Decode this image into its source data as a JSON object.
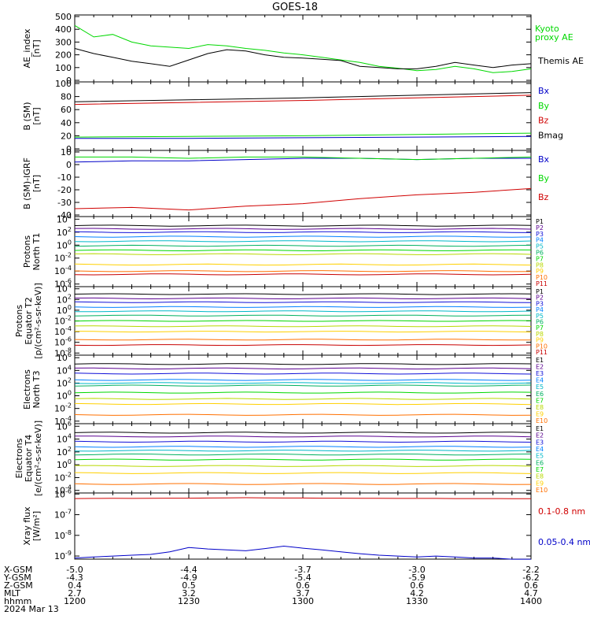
{
  "title": "GOES-18",
  "footer": {
    "rows": [
      {
        "label": "X-GSM",
        "values": [
          "-5.0",
          "-4.4",
          "-3.7",
          "-3.0",
          "-2.2"
        ]
      },
      {
        "label": "Y-GSM",
        "values": [
          "-4.3",
          "-4.9",
          "-5.4",
          "-5.9",
          "-6.2"
        ]
      },
      {
        "label": "Z-GSM",
        "values": [
          "0.4",
          "0.5",
          "0.6",
          "0.6",
          "0.6"
        ]
      },
      {
        "label": "MLT",
        "values": [
          "2.7",
          "3.2",
          "3.7",
          "4.2",
          "4.7"
        ]
      },
      {
        "label": "hhmm",
        "values": [
          "1200",
          "1230",
          "1300",
          "1330",
          "1400"
        ]
      }
    ],
    "date": "2024 Mar 13"
  },
  "colors": {
    "black": "#000000",
    "green": "#00d800",
    "blue": "#0000c8",
    "red": "#d00000",
    "p": [
      "#000000",
      "#5a0090",
      "#1010d8",
      "#0080ff",
      "#00b8c8",
      "#00b060",
      "#00d800",
      "#b8d800",
      "#ffd000",
      "#ff7000",
      "#c80000"
    ]
  },
  "chart_data": [
    {
      "type": "line",
      "ylabel": [
        "AE_index",
        "[nT]"
      ],
      "ylim": [
        0,
        500
      ],
      "yticks": [
        "0",
        "100",
        "200",
        "300",
        "400",
        "500"
      ],
      "x": [
        1200,
        1205,
        1210,
        1215,
        1220,
        1225,
        1230,
        1235,
        1240,
        1245,
        1250,
        1255,
        1300,
        1305,
        1310,
        1315,
        1320,
        1325,
        1330,
        1335,
        1340,
        1345,
        1350,
        1355,
        1400
      ],
      "series": [
        {
          "name": "Kyoto proxy AE",
          "color": "green",
          "values": [
            430,
            340,
            360,
            300,
            270,
            260,
            250,
            280,
            270,
            250,
            235,
            215,
            200,
            180,
            160,
            140,
            110,
            95,
            75,
            85,
            110,
            90,
            60,
            70,
            90
          ]
        },
        {
          "name": "Themis AE",
          "color": "black",
          "values": [
            250,
            210,
            180,
            150,
            130,
            110,
            160,
            210,
            240,
            230,
            200,
            180,
            175,
            165,
            155,
            110,
            100,
            90,
            90,
            110,
            140,
            120,
            100,
            120,
            130
          ]
        }
      ]
    },
    {
      "type": "line",
      "ylabel": [
        "B (SM)",
        "[nT]"
      ],
      "ylim": [
        0,
        100
      ],
      "yticks": [
        "0",
        "20",
        "40",
        "60",
        "80",
        "100"
      ],
      "x": [
        1200,
        1230,
        1300,
        1330,
        1400
      ],
      "series": [
        {
          "name": "Bx",
          "color": "blue",
          "values": [
            16,
            16,
            17,
            18,
            19
          ]
        },
        {
          "name": "By",
          "color": "green",
          "values": [
            18,
            19,
            20,
            22,
            24
          ]
        },
        {
          "name": "Bz",
          "color": "red",
          "values": [
            68,
            71,
            74,
            78,
            82
          ]
        },
        {
          "name": "Bmag",
          "color": "black",
          "values": [
            72,
            75,
            78,
            82,
            86
          ]
        }
      ]
    },
    {
      "type": "line",
      "ylabel": [
        "B (SM)-IGRF",
        "[nT]"
      ],
      "ylim": [
        -40,
        10
      ],
      "yticks": [
        "-40",
        "-30",
        "-20",
        "-10",
        "0",
        "10"
      ],
      "x": [
        1200,
        1215,
        1230,
        1245,
        1300,
        1315,
        1330,
        1345,
        1400
      ],
      "series": [
        {
          "name": "Bx",
          "color": "blue",
          "values": [
            2,
            3,
            3,
            4,
            5,
            5,
            4,
            5,
            5
          ]
        },
        {
          "name": "By",
          "color": "green",
          "values": [
            6,
            6,
            5,
            6,
            6,
            5,
            4,
            5,
            6
          ]
        },
        {
          "name": "Bz",
          "color": "red",
          "values": [
            -35,
            -34,
            -36,
            -33,
            -31,
            -27,
            -24,
            -22,
            -19
          ]
        }
      ]
    },
    {
      "type": "line",
      "ylabel": [
        "Protons",
        "North T1"
      ],
      "scale": "log",
      "yticks": [
        "10^-6",
        "10^-4",
        "10^-2",
        "10^0",
        "10^2",
        "10^4"
      ],
      "labels": [
        "P1",
        "P2",
        "P3",
        "P4",
        "P5",
        "P6",
        "P7",
        "P8",
        "P9",
        "P10",
        "P11"
      ],
      "log_levels": [
        3.0,
        2.5,
        2.0,
        1.3,
        0.6,
        -0.1,
        -0.8,
        -1.4,
        -3.0,
        -4.0,
        -4.5
      ]
    },
    {
      "type": "line",
      "ylabel": [
        "Protons",
        "Equator T2",
        "[p/(cm²-s-sr-keV)]"
      ],
      "scale": "log",
      "yticks": [
        "10^-8",
        "10^-6",
        "10^-4",
        "10^-2",
        "10^0",
        "10^2",
        "10^4"
      ],
      "labels": [
        "P1",
        "P2",
        "P3",
        "P4",
        "P5",
        "P6",
        "P7",
        "P8",
        "P9",
        "P10",
        "P11"
      ],
      "log_levels": [
        3.0,
        2.2,
        1.5,
        0.6,
        -0.2,
        -1.0,
        -2.0,
        -3.0,
        -4.0,
        -5.5,
        -6.5
      ]
    },
    {
      "type": "line",
      "ylabel": [
        "Electrons",
        "North T3"
      ],
      "scale": "log",
      "yticks": [
        "10^-4",
        "10^-2",
        "10^0",
        "10^2",
        "10^4",
        "10^6"
      ],
      "labels": [
        "E1",
        "E2",
        "E3",
        "E4",
        "E5",
        "E6",
        "E7",
        "E8",
        "E9",
        "E10"
      ],
      "log_levels": [
        5.0,
        4.3,
        3.5,
        2.5,
        2.0,
        1.6,
        0.5,
        -0.5,
        -1.3,
        -3.0
      ]
    },
    {
      "type": "line",
      "ylabel": [
        "Electrons",
        "Equator T4",
        "[e/(cm²-s-sr-keV)]"
      ],
      "scale": "log",
      "yticks": [
        "10^-4",
        "10^-2",
        "10^0",
        "10^2",
        "10^4",
        "10^6"
      ],
      "labels": [
        "E1",
        "E2",
        "E3",
        "E4",
        "E5",
        "E6",
        "E7",
        "E8",
        "E9",
        "E10"
      ],
      "log_levels": [
        5.0,
        4.4,
        3.6,
        2.8,
        2.2,
        1.6,
        0.8,
        -0.2,
        -1.3,
        -3.0
      ]
    },
    {
      "type": "line",
      "ylabel": [
        "Xray flux",
        "[W/m²]"
      ],
      "scale": "log",
      "yticks": [
        "10^-9",
        "10^-8",
        "10^-7",
        "10^-6"
      ],
      "x": [
        1200,
        1205,
        1210,
        1215,
        1220,
        1225,
        1230,
        1235,
        1240,
        1245,
        1250,
        1255,
        1300,
        1305,
        1310,
        1315,
        1320,
        1325,
        1330,
        1335,
        1340,
        1345,
        1350,
        1355,
        1400
      ],
      "series": [
        {
          "name": "0.1-0.8 nm",
          "color": "red",
          "values": [
            6e-07,
            6.1e-07,
            6.2e-07,
            6.1e-07,
            6.2e-07,
            6.3e-07,
            6.3e-07,
            6.4e-07,
            6.5e-07,
            6.6e-07,
            6.5e-07,
            6.4e-07,
            6.4e-07,
            6.3e-07,
            6.3e-07,
            6.2e-07,
            6.2e-07,
            6.1e-07,
            6.1e-07,
            6.1e-07,
            6e-07,
            6e-07,
            6e-07,
            5.9e-07,
            5.9e-07
          ]
        },
        {
          "name": "0.05-0.4 nm",
          "color": "blue",
          "values": [
            8e-10,
            9e-10,
            1e-09,
            1.1e-09,
            1.2e-09,
            1.6e-09,
            2.6e-09,
            2.2e-09,
            2e-09,
            1.8e-09,
            2.3e-09,
            3e-09,
            2.4e-09,
            2e-09,
            1.6e-09,
            1.3e-09,
            1.1e-09,
            1e-09,
            9e-10,
            1e-09,
            9e-10,
            8e-10,
            8e-10,
            7e-10,
            7e-10
          ]
        }
      ]
    }
  ]
}
